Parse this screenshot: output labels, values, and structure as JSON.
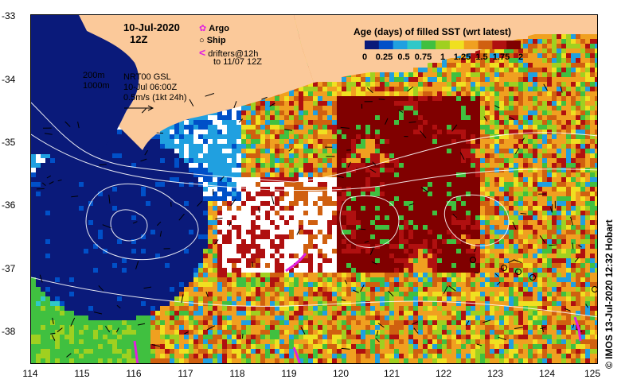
{
  "map": {
    "title_date": "10-Jul-2020",
    "title_hour": "12Z",
    "legend_argo": "Argo",
    "legend_ship": "Ship",
    "legend_drifters_1": "drifters@12h",
    "legend_drifters_2": "to 11/07 12Z",
    "contour_200": "200m",
    "contour_1000": "1000m",
    "current_model": "NRT00 GSL",
    "current_time": "10-Jul 06:00Z",
    "current_scale": "0.5m/s (1kt 24h)",
    "colorbar_title": "Age (days) of filled SST (wrt latest)",
    "colorbar_ticks": [
      "0",
      "0.25",
      "0.5",
      "0.75",
      "1",
      "1.25",
      "1.5",
      "1.75",
      "2"
    ],
    "colorbar_colors": [
      "#0a1a7a",
      "#0050c8",
      "#20a0e0",
      "#30c8c8",
      "#40c040",
      "#a0d020",
      "#f0e020",
      "#f0a020",
      "#d06010",
      "#b01010",
      "#800000"
    ],
    "credit": "© IMOS 13-Jul-2020 12:32 Hobart",
    "lat_ticks": [
      "-33",
      "-34",
      "-35",
      "-36",
      "-37",
      "-38"
    ],
    "lon_ticks": [
      "114",
      "115",
      "116",
      "117",
      "118",
      "119",
      "120",
      "121",
      "122",
      "123",
      "124",
      "125"
    ],
    "land_color": "#fbc99a",
    "shelf_color": "#0a1a7a"
  }
}
